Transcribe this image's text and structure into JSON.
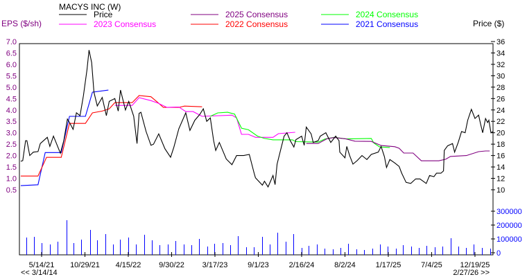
{
  "chart_data": {
    "type": "line",
    "title": "MACYS INC (W)",
    "left_axis": {
      "label": "EPS ($/sh)",
      "ticks": [
        "0.5",
        "1.0",
        "1.5",
        "2.0",
        "2.5",
        "3.0",
        "3.5",
        "4.0",
        "4.5",
        "5.0",
        "5.5",
        "6.0",
        "6.5",
        "7.0"
      ],
      "range": [
        0.5,
        7.0
      ],
      "color": "#800080"
    },
    "right_axis": {
      "label": "Price ($)",
      "ticks": [
        "10",
        "12",
        "14",
        "16",
        "18",
        "20",
        "22",
        "24",
        "26",
        "28",
        "30",
        "32",
        "34",
        "36"
      ],
      "range": [
        10,
        36
      ]
    },
    "volume_axis": {
      "ticks": [
        "0",
        "100000",
        "200000",
        "300000"
      ],
      "color": "#0000ff"
    },
    "x_axis": {
      "ticks": [
        {
          "date": "2021-05-14",
          "label": "5/14/21"
        },
        {
          "date": "2021-10-29",
          "label": "10/29/21"
        },
        {
          "date": "2022-04-15",
          "label": "4/15/22"
        },
        {
          "date": "2022-09-30",
          "label": "9/30/22"
        },
        {
          "date": "2023-03-17",
          "label": "3/17/23"
        },
        {
          "date": "2023-09-01",
          "label": "9/1/23"
        },
        {
          "date": "2024-02-16",
          "label": "2/16/24"
        },
        {
          "date": "2024-08-02",
          "label": "8/2/24"
        },
        {
          "date": "2025-01-17",
          "label": "1/17/25"
        },
        {
          "date": "2025-07-04",
          "label": "7/4/25"
        },
        {
          "date": "2025-12-19",
          "label": "12/19/25"
        }
      ],
      "range": [
        "2021-02-17",
        "2026-02-27"
      ],
      "nav_back": "<< 3/14/14",
      "nav_forward": "2/27/26 >>"
    },
    "grid": false,
    "legend_placement": "top",
    "series": [
      {
        "name": "Price",
        "axis": "right",
        "color": "#000000",
        "points": [
          [
            "2021-02-22",
            15.0
          ],
          [
            "2021-03-02",
            15.1
          ],
          [
            "2021-03-13",
            18.6
          ],
          [
            "2021-03-18",
            18.6
          ],
          [
            "2021-03-29",
            16.0
          ],
          [
            "2021-04-12",
            16.6
          ],
          [
            "2021-04-30",
            16.7
          ],
          [
            "2021-05-09",
            18.1
          ],
          [
            "2021-06-05",
            19.2
          ],
          [
            "2021-06-15",
            17.6
          ],
          [
            "2021-06-29",
            19.4
          ],
          [
            "2021-07-26",
            16.4
          ],
          [
            "2021-08-08",
            18.6
          ],
          [
            "2021-08-22",
            22.4
          ],
          [
            "2021-08-30",
            21.8
          ],
          [
            "2021-09-13",
            20.6
          ],
          [
            "2021-09-26",
            23.5
          ],
          [
            "2021-10-10",
            23.0
          ],
          [
            "2021-10-23",
            26.5
          ],
          [
            "2021-11-06",
            31.1
          ],
          [
            "2021-11-14",
            34.5
          ],
          [
            "2021-11-24",
            32.3
          ],
          [
            "2021-12-03",
            27.1
          ],
          [
            "2021-12-16",
            24.7
          ],
          [
            "2022-01-04",
            26.2
          ],
          [
            "2022-01-20",
            23.0
          ],
          [
            "2022-01-31",
            25.5
          ],
          [
            "2022-02-22",
            26.0
          ],
          [
            "2022-03-07",
            23.8
          ],
          [
            "2022-03-16",
            27.5
          ],
          [
            "2022-04-04",
            24.0
          ],
          [
            "2022-04-17",
            25.5
          ],
          [
            "2022-05-06",
            22.9
          ],
          [
            "2022-05-19",
            18.1
          ],
          [
            "2022-05-27",
            23.4
          ],
          [
            "2022-06-03",
            23.6
          ],
          [
            "2022-06-23",
            20.2
          ],
          [
            "2022-07-12",
            17.8
          ],
          [
            "2022-07-22",
            18.0
          ],
          [
            "2022-08-11",
            19.8
          ],
          [
            "2022-09-04",
            17.2
          ],
          [
            "2022-09-26",
            15.7
          ],
          [
            "2022-10-09",
            17.5
          ],
          [
            "2022-10-28",
            20.7
          ],
          [
            "2022-11-24",
            23.5
          ],
          [
            "2022-12-10",
            20.4
          ],
          [
            "2022-12-29",
            22.2
          ],
          [
            "2023-01-17",
            23.2
          ],
          [
            "2023-01-31",
            24.2
          ],
          [
            "2023-02-13",
            22.0
          ],
          [
            "2023-02-27",
            22.6
          ],
          [
            "2023-03-12",
            18.6
          ],
          [
            "2023-03-20",
            16.9
          ],
          [
            "2023-04-03",
            18.3
          ],
          [
            "2023-04-30",
            15.4
          ],
          [
            "2023-05-22",
            14.4
          ],
          [
            "2023-06-09",
            16.0
          ],
          [
            "2023-07-06",
            16.0
          ],
          [
            "2023-07-28",
            16.2
          ],
          [
            "2023-08-16",
            12.9
          ],
          [
            "2023-08-21",
            12.1
          ],
          [
            "2023-09-17",
            10.8
          ],
          [
            "2023-09-25",
            11.5
          ],
          [
            "2023-10-09",
            10.5
          ],
          [
            "2023-10-28",
            12.5
          ],
          [
            "2023-11-05",
            10.9
          ],
          [
            "2023-11-13",
            14.5
          ],
          [
            "2023-11-26",
            16.9
          ],
          [
            "2023-12-10",
            19.4
          ],
          [
            "2023-12-21",
            20.0
          ],
          [
            "2024-01-03",
            18.6
          ],
          [
            "2024-01-17",
            17.5
          ],
          [
            "2024-01-25",
            18.8
          ],
          [
            "2024-02-16",
            19.4
          ],
          [
            "2024-02-26",
            17.8
          ],
          [
            "2024-03-05",
            21.0
          ],
          [
            "2024-03-24",
            19.8
          ],
          [
            "2024-04-01",
            18.3
          ],
          [
            "2024-04-20",
            18.6
          ],
          [
            "2024-04-28",
            19.4
          ],
          [
            "2024-05-20",
            20.0
          ],
          [
            "2024-06-08",
            18.3
          ],
          [
            "2024-06-27",
            19.4
          ],
          [
            "2024-07-10",
            18.6
          ],
          [
            "2024-07-13",
            16.6
          ],
          [
            "2024-08-02",
            15.6
          ],
          [
            "2024-08-09",
            17.6
          ],
          [
            "2024-08-20",
            16.0
          ],
          [
            "2024-09-02",
            14.5
          ],
          [
            "2024-09-18",
            15.1
          ],
          [
            "2024-10-07",
            16.0
          ],
          [
            "2024-10-26",
            15.3
          ],
          [
            "2024-11-12",
            16.2
          ],
          [
            "2024-12-09",
            16.6
          ],
          [
            "2024-12-20",
            17.6
          ],
          [
            "2025-01-02",
            15.8
          ],
          [
            "2025-01-10",
            13.9
          ],
          [
            "2025-01-23",
            15.3
          ],
          [
            "2025-02-11",
            14.7
          ],
          [
            "2025-02-28",
            14.1
          ],
          [
            "2025-03-10",
            12.9
          ],
          [
            "2025-03-27",
            11.3
          ],
          [
            "2025-04-14",
            11.1
          ],
          [
            "2025-05-03",
            11.9
          ],
          [
            "2025-05-20",
            11.9
          ],
          [
            "2025-06-13",
            11.1
          ],
          [
            "2025-06-26",
            12.5
          ],
          [
            "2025-07-13",
            12.3
          ],
          [
            "2025-07-23",
            12.9
          ],
          [
            "2025-08-09",
            12.9
          ],
          [
            "2025-08-19",
            13.3
          ],
          [
            "2025-08-22",
            16.9
          ],
          [
            "2025-09-04",
            17.7
          ],
          [
            "2025-09-23",
            18.1
          ],
          [
            "2025-10-01",
            16.6
          ],
          [
            "2025-10-15",
            18.3
          ],
          [
            "2025-10-28",
            20.2
          ],
          [
            "2025-11-11",
            20.0
          ],
          [
            "2025-11-21",
            22.2
          ],
          [
            "2025-12-05",
            24.1
          ],
          [
            "2025-12-19",
            22.5
          ],
          [
            "2026-01-02",
            23.1
          ],
          [
            "2026-01-10",
            21.5
          ],
          [
            "2026-01-18",
            20.0
          ],
          [
            "2026-01-29",
            22.5
          ],
          [
            "2026-02-06",
            21.8
          ],
          [
            "2026-02-11",
            22.2
          ],
          [
            "2026-02-19",
            20.0
          ],
          [
            "2026-02-27",
            20.2
          ]
        ]
      },
      {
        "name": "2025 Consensus",
        "axis": "left",
        "color": "#800080",
        "points": [
          [
            "2024-03-05",
            2.53
          ],
          [
            "2024-04-20",
            2.53
          ],
          [
            "2024-05-25",
            2.74
          ],
          [
            "2024-06-21",
            2.79
          ],
          [
            "2024-08-06",
            2.73
          ],
          [
            "2024-09-10",
            2.63
          ],
          [
            "2024-11-12",
            2.62
          ],
          [
            "2024-12-20",
            2.44
          ],
          [
            "2025-02-11",
            2.39
          ],
          [
            "2025-02-28",
            2.32
          ],
          [
            "2025-03-18",
            2.11
          ],
          [
            "2025-04-23",
            2.11
          ],
          [
            "2025-05-25",
            1.77
          ],
          [
            "2025-08-01",
            1.77
          ],
          [
            "2025-08-28",
            1.84
          ],
          [
            "2025-09-15",
            1.96
          ],
          [
            "2025-11-16",
            2.0
          ],
          [
            "2026-01-02",
            2.17
          ],
          [
            "2026-01-29",
            2.2
          ],
          [
            "2026-02-14",
            2.2
          ]
        ]
      },
      {
        "name": "2024 Consensus",
        "axis": "left",
        "color": "#00ff00",
        "points": [
          [
            "2023-02-27",
            3.72
          ],
          [
            "2023-03-28",
            3.87
          ],
          [
            "2023-05-05",
            3.9
          ],
          [
            "2023-06-01",
            3.82
          ],
          [
            "2023-06-28",
            3.2
          ],
          [
            "2023-07-25",
            3.13
          ],
          [
            "2023-08-29",
            2.85
          ],
          [
            "2023-09-25",
            2.75
          ],
          [
            "2023-10-28",
            2.69
          ],
          [
            "2024-01-11",
            2.69
          ],
          [
            "2024-01-25",
            2.61
          ],
          [
            "2024-04-20",
            2.59
          ],
          [
            "2024-05-17",
            2.73
          ],
          [
            "2024-06-21",
            2.8
          ],
          [
            "2024-08-06",
            2.73
          ],
          [
            "2024-11-12",
            2.75
          ],
          [
            "2024-11-22",
            2.55
          ],
          [
            "2024-12-14",
            2.38
          ],
          [
            "2025-01-23",
            2.35
          ]
        ]
      },
      {
        "name": "2023 Consensus",
        "axis": "left",
        "color": "#ff00ff",
        "points": [
          [
            "2022-02-22",
            4.2
          ],
          [
            "2022-04-30",
            4.2
          ],
          [
            "2022-05-27",
            4.54
          ],
          [
            "2022-07-12",
            4.41
          ],
          [
            "2022-08-08",
            4.3
          ],
          [
            "2022-09-12",
            4.11
          ],
          [
            "2022-10-28",
            4.13
          ],
          [
            "2022-11-24",
            3.93
          ],
          [
            "2022-12-22",
            3.93
          ],
          [
            "2023-01-26",
            3.72
          ],
          [
            "2023-05-22",
            3.77
          ],
          [
            "2023-06-09",
            3.65
          ],
          [
            "2023-06-28",
            2.93
          ],
          [
            "2023-07-25",
            2.93
          ],
          [
            "2023-08-21",
            2.8
          ],
          [
            "2023-10-28",
            2.8
          ],
          [
            "2023-11-18",
            2.96
          ],
          [
            "2024-01-22",
            3.02
          ]
        ]
      },
      {
        "name": "2022 Consensus",
        "axis": "left",
        "color": "#ff0000",
        "points": [
          [
            "2021-02-22",
            1.1
          ],
          [
            "2021-04-30",
            1.1
          ],
          [
            "2021-06-02",
            1.92
          ],
          [
            "2021-07-29",
            1.92
          ],
          [
            "2021-08-30",
            3.41
          ],
          [
            "2021-10-31",
            3.41
          ],
          [
            "2021-11-27",
            3.87
          ],
          [
            "2022-01-04",
            3.95
          ],
          [
            "2022-01-31",
            4.05
          ],
          [
            "2022-02-22",
            4.32
          ],
          [
            "2022-04-30",
            4.32
          ],
          [
            "2022-05-27",
            4.63
          ],
          [
            "2022-07-12",
            4.58
          ],
          [
            "2022-08-08",
            4.32
          ],
          [
            "2022-08-29",
            4.11
          ],
          [
            "2022-10-28",
            4.11
          ],
          [
            "2022-11-19",
            4.17
          ],
          [
            "2023-01-26",
            4.14
          ]
        ]
      },
      {
        "name": "2021 Consensus",
        "axis": "left",
        "color": "#0000ff",
        "points": [
          [
            "2021-02-22",
            0.68
          ],
          [
            "2021-04-30",
            0.72
          ],
          [
            "2021-05-28",
            2.13
          ],
          [
            "2021-07-29",
            2.13
          ],
          [
            "2021-08-30",
            3.72
          ],
          [
            "2021-10-31",
            3.72
          ],
          [
            "2021-11-27",
            4.78
          ],
          [
            "2022-01-28",
            4.87
          ]
        ]
      }
    ],
    "volume": {
      "color": "#0000ff",
      "dates": [
        "2021-03-15",
        "2021-04-15",
        "2021-05-15",
        "2021-06-15",
        "2021-07-15",
        "2021-08-20",
        "2021-09-15",
        "2021-10-15",
        "2021-11-18",
        "2021-12-15",
        "2022-01-15",
        "2022-02-15",
        "2022-03-15",
        "2022-04-15",
        "2022-05-15",
        "2022-06-15",
        "2022-07-15",
        "2022-08-15",
        "2022-09-15",
        "2022-10-15",
        "2022-11-15",
        "2022-12-15",
        "2023-01-15",
        "2023-02-15",
        "2023-03-15",
        "2023-04-15",
        "2023-05-15",
        "2023-06-15",
        "2023-07-15",
        "2023-08-15",
        "2023-09-15",
        "2023-10-15",
        "2023-11-15",
        "2023-12-15",
        "2024-01-15",
        "2024-02-15",
        "2024-03-15",
        "2024-04-15",
        "2024-05-15",
        "2024-06-15",
        "2024-07-15",
        "2024-08-15",
        "2024-09-15",
        "2024-10-15",
        "2024-11-15",
        "2024-12-15",
        "2025-01-15",
        "2025-02-15",
        "2025-03-15",
        "2025-04-15",
        "2025-05-15",
        "2025-06-15",
        "2025-07-15",
        "2025-08-15",
        "2025-09-15",
        "2025-10-15",
        "2025-11-15",
        "2025-12-15",
        "2026-01-15",
        "2026-02-15"
      ],
      "values": [
        110000,
        115000,
        70000,
        60000,
        80000,
        235000,
        70000,
        95000,
        165000,
        90000,
        135000,
        60000,
        95000,
        110000,
        60000,
        130000,
        90000,
        55000,
        60000,
        85000,
        60000,
        55000,
        100000,
        45000,
        65000,
        70000,
        55000,
        120000,
        40000,
        40000,
        115000,
        60000,
        145000,
        80000,
        135000,
        35000,
        50000,
        60000,
        30000,
        25000,
        35000,
        65000,
        25000,
        20000,
        30000,
        60000,
        45000,
        30000,
        55000,
        45000,
        35000,
        50000,
        40000,
        45000,
        105000,
        45000,
        35000,
        60000,
        35000,
        30000
      ]
    }
  }
}
